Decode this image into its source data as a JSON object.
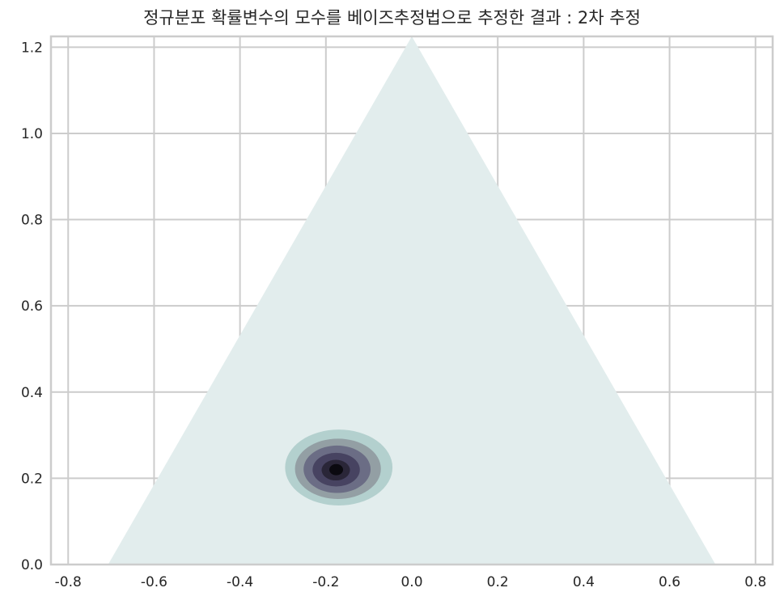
{
  "chart_data": {
    "type": "contour",
    "title": "정규분포 확률변수의 모수를 베이즈추정법으로 추정한 결과 : 2차 추정",
    "xlabel": "",
    "ylabel": "",
    "xlim": [
      -0.84,
      0.84
    ],
    "ylim": [
      0.0,
      1.225
    ],
    "xticks": [
      -0.8,
      -0.6,
      -0.4,
      -0.2,
      0.0,
      0.2,
      0.4,
      0.6,
      0.8
    ],
    "xtick_labels": [
      "-0.8",
      "-0.6",
      "-0.4",
      "-0.2",
      "0.0",
      "0.2",
      "0.4",
      "0.6",
      "0.8"
    ],
    "yticks": [
      0.0,
      0.2,
      0.4,
      0.6,
      0.8,
      1.0,
      1.2
    ],
    "ytick_labels": [
      "0.0",
      "0.2",
      "0.4",
      "0.6",
      "0.8",
      "1.0",
      "1.2"
    ],
    "grid": true,
    "simplex": {
      "vertices": [
        [
          -0.707,
          0.0
        ],
        [
          0.707,
          0.0
        ],
        [
          0.0,
          1.225
        ]
      ],
      "fill_color": "#e2eded"
    },
    "peak": {
      "x": -0.175,
      "y": 0.22
    },
    "contour_levels": [
      {
        "level": 1,
        "rx": 0.125,
        "ry": 0.088,
        "cx": -0.17,
        "cy": 0.225,
        "color": "#b3d0ce"
      },
      {
        "level": 2,
        "rx": 0.1,
        "ry": 0.07,
        "cx": -0.172,
        "cy": 0.222,
        "color": "#939fa4"
      },
      {
        "level": 3,
        "rx": 0.078,
        "ry": 0.055,
        "cx": -0.174,
        "cy": 0.221,
        "color": "#6b6d85"
      },
      {
        "level": 4,
        "rx": 0.055,
        "ry": 0.039,
        "cx": -0.176,
        "cy": 0.22,
        "color": "#474361"
      },
      {
        "level": 5,
        "rx": 0.033,
        "ry": 0.024,
        "cx": -0.177,
        "cy": 0.219,
        "color": "#2a2638"
      },
      {
        "level": 6,
        "rx": 0.016,
        "ry": 0.013,
        "cx": -0.176,
        "cy": 0.22,
        "color": "#0b0a10"
      }
    ]
  },
  "style": {
    "grid_color": "#cccccc",
    "spine_color": "#cccccc",
    "text_color": "#262626"
  }
}
